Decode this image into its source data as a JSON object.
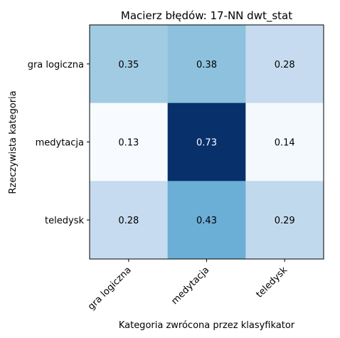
{
  "chart_data": {
    "type": "heatmap",
    "title": "Macierz błędów: 17-NN dwt_stat",
    "xlabel": "Kategoria zwrócona przez klasyfikator",
    "ylabel": "Rzeczywista kategoria",
    "x_categories": [
      "gra logiczna",
      "medytacja",
      "teledysk"
    ],
    "y_categories": [
      "gra logiczna",
      "medytacja",
      "teledysk"
    ],
    "values": [
      [
        0.35,
        0.38,
        0.28
      ],
      [
        0.13,
        0.73,
        0.14
      ],
      [
        0.28,
        0.43,
        0.29
      ]
    ],
    "value_labels": [
      [
        "0.35",
        "0.38",
        "0.28"
      ],
      [
        "0.13",
        "0.73",
        "0.14"
      ],
      [
        "0.28",
        "0.43",
        "0.29"
      ]
    ],
    "colormap": "Blues",
    "colormap_stops": [
      "#f7fbff",
      "#deebf7",
      "#c6dbef",
      "#9ecae1",
      "#6baed6",
      "#4292c6",
      "#2171b5",
      "#08519c",
      "#08306b"
    ],
    "grid": false,
    "legend": "none"
  }
}
